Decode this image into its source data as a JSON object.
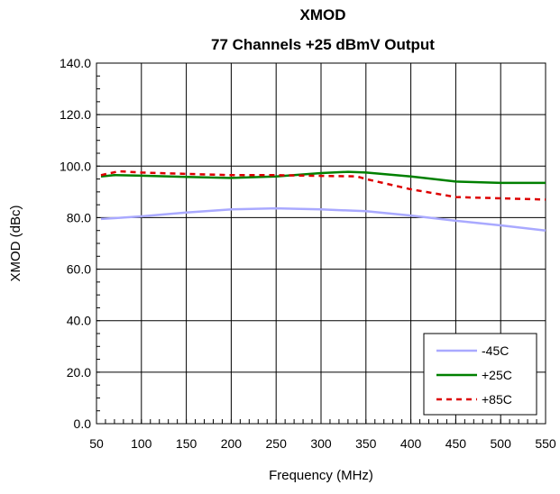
{
  "chart_data": {
    "type": "line",
    "title": "XMOD",
    "subtitle": "77 Channels +25 dBmV Output",
    "xlabel": "Frequency (MHz)",
    "ylabel": "XMOD (dBc)",
    "xlim": [
      50,
      550
    ],
    "ylim": [
      0,
      140
    ],
    "x_ticks": [
      "50",
      "100",
      "150",
      "200",
      "250",
      "300",
      "350",
      "400",
      "450",
      "500",
      "550"
    ],
    "y_ticks": [
      "0.0",
      "20.0",
      "40.0",
      "60.0",
      "80.0",
      "100.0",
      "120.0",
      "140.0"
    ],
    "grid": true,
    "legend_position": "bottom-right",
    "series": [
      {
        "name": "-45C",
        "color": "#a9a9ff",
        "style": "solid",
        "x": [
          55,
          70,
          100,
          150,
          200,
          250,
          300,
          350,
          400,
          450,
          500,
          550
        ],
        "y": [
          79.5,
          79.8,
          80.5,
          82.0,
          83.2,
          83.6,
          83.2,
          82.5,
          80.8,
          78.8,
          77.0,
          75.0
        ]
      },
      {
        "name": "+25C",
        "color": "#008000",
        "style": "solid",
        "x": [
          55,
          70,
          100,
          150,
          200,
          250,
          300,
          330,
          350,
          400,
          450,
          500,
          550
        ],
        "y": [
          96.0,
          96.5,
          96.3,
          95.8,
          95.4,
          96.0,
          97.3,
          97.8,
          97.5,
          96.0,
          94.0,
          93.5,
          93.5
        ]
      },
      {
        "name": "+85C",
        "color": "#dd0000",
        "style": "dashed",
        "x": [
          55,
          75,
          100,
          150,
          200,
          250,
          300,
          340,
          350,
          375,
          400,
          425,
          450,
          500,
          550
        ],
        "y": [
          96.5,
          98.0,
          97.5,
          97.0,
          96.5,
          96.5,
          96.2,
          96.0,
          95.0,
          93.0,
          91.0,
          89.5,
          88.0,
          87.5,
          87.0
        ]
      }
    ]
  }
}
